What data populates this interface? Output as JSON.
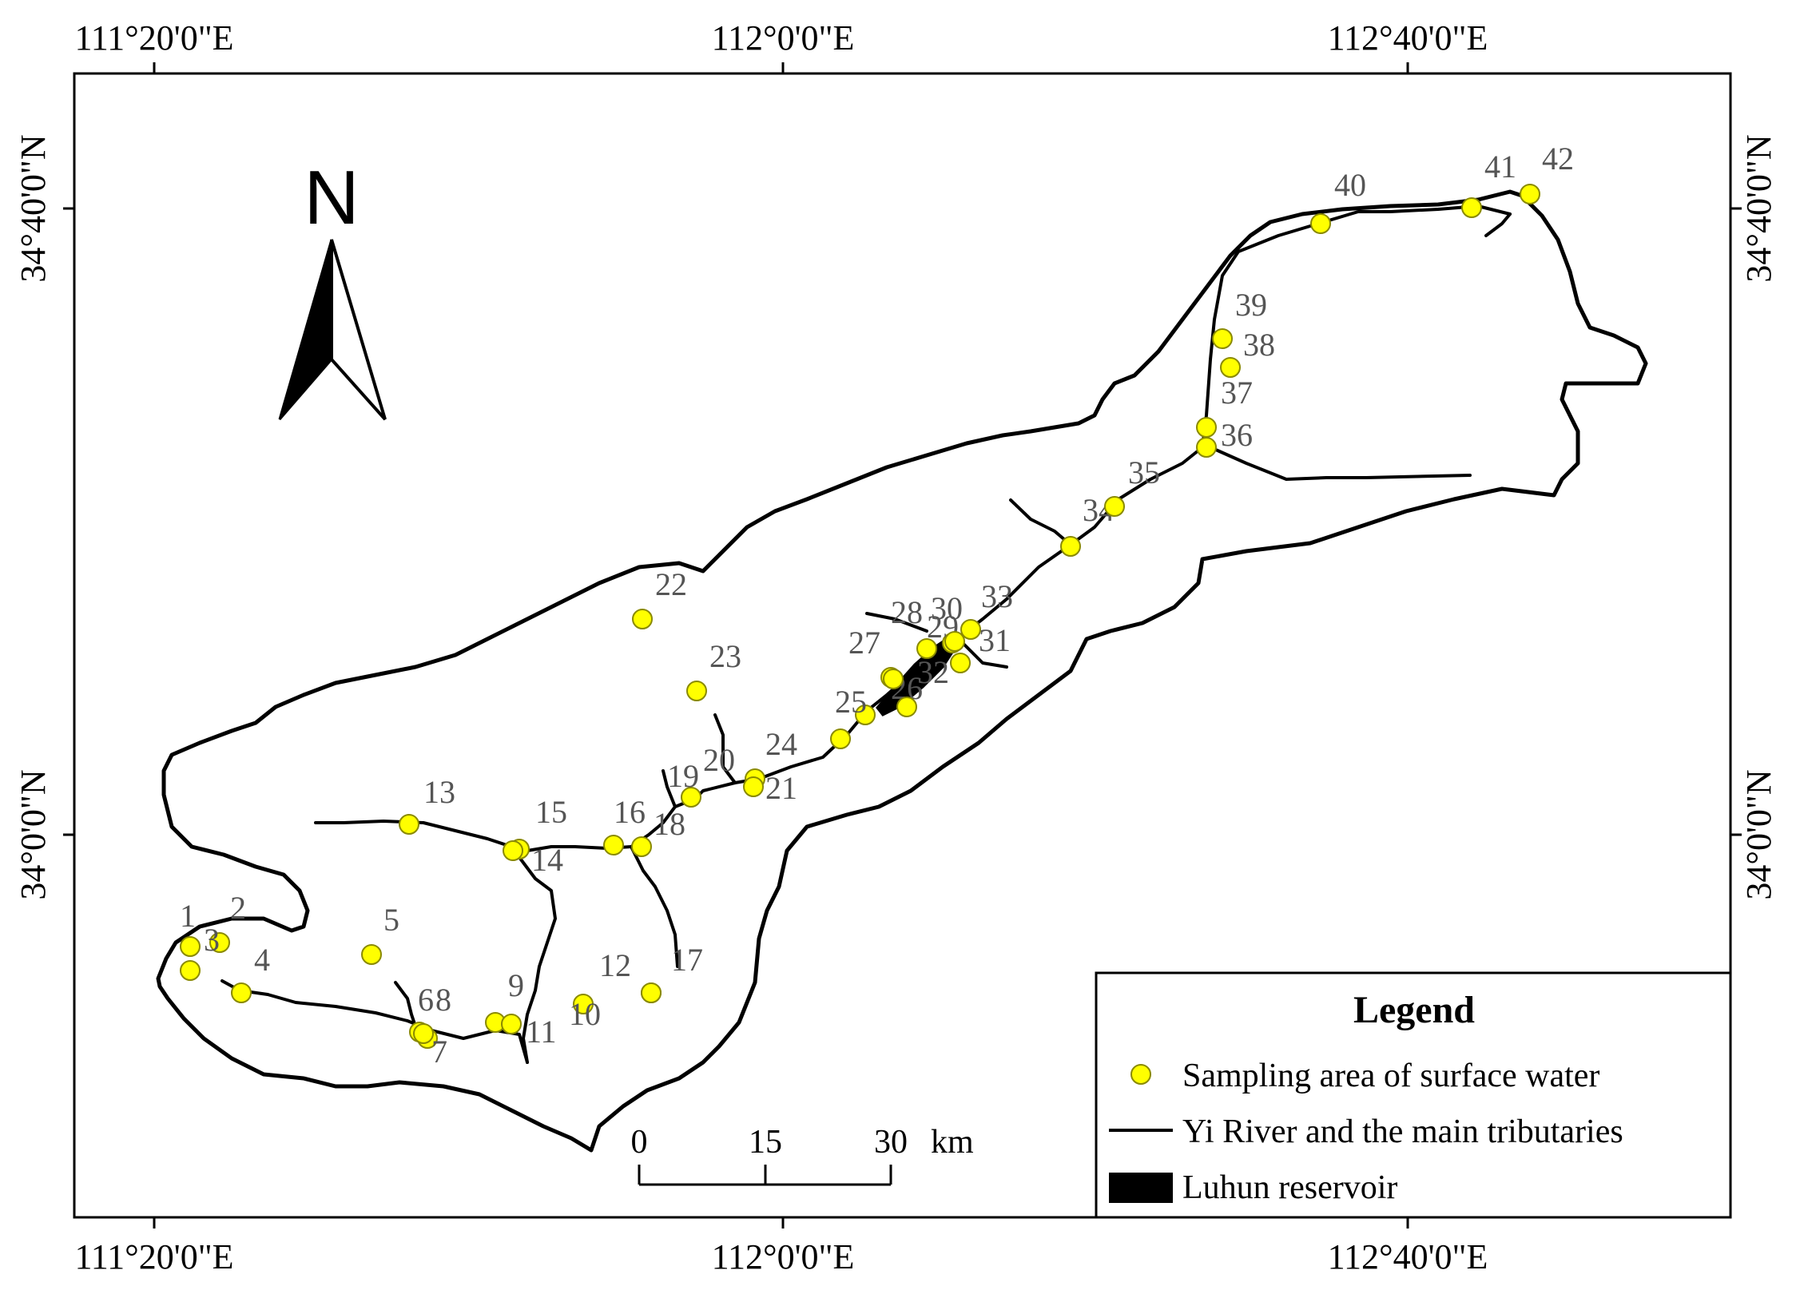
{
  "coords": {
    "top": [
      "111°20'0\"E",
      "112°0'0\"E",
      "112°40'0\"E"
    ],
    "bottom": [
      "111°20'0\"E",
      "112°0'0\"E",
      "112°40'0\"E"
    ],
    "left": [
      "34°40'0\"N",
      "34°0'0\"N"
    ],
    "right": [
      "34°40'0\"N",
      "34°0'0\"N"
    ]
  },
  "north": {
    "label": "N"
  },
  "legend": {
    "title": "Legend",
    "items": [
      {
        "label": "Sampling area of surface water",
        "symbol": "yellow-point"
      },
      {
        "label": "Yi River and the main tributaries",
        "symbol": "black-line"
      },
      {
        "label": "Luhun reservoir",
        "symbol": "black-fill"
      }
    ]
  },
  "scale": {
    "ticks": [
      "0",
      "15",
      "30"
    ],
    "unit": "km"
  },
  "colors": {
    "point_fill": "#ffff00",
    "point_stroke": "#8a8a00",
    "line": "#000000",
    "label": "#555555"
  },
  "sites": [
    {
      "id": "1",
      "label": "1"
    },
    {
      "id": "2",
      "label": "2"
    },
    {
      "id": "3",
      "label": "3"
    },
    {
      "id": "4",
      "label": "4"
    },
    {
      "id": "5",
      "label": "5"
    },
    {
      "id": "6",
      "label": "6"
    },
    {
      "id": "7",
      "label": "7"
    },
    {
      "id": "8",
      "label": "8"
    },
    {
      "id": "9",
      "label": "9"
    },
    {
      "id": "10",
      "label": "10"
    },
    {
      "id": "11",
      "label": "11"
    },
    {
      "id": "12",
      "label": "12"
    },
    {
      "id": "13",
      "label": "13"
    },
    {
      "id": "14",
      "label": "14"
    },
    {
      "id": "15",
      "label": "15"
    },
    {
      "id": "16",
      "label": "16"
    },
    {
      "id": "17",
      "label": "17"
    },
    {
      "id": "18",
      "label": "18"
    },
    {
      "id": "19",
      "label": "19"
    },
    {
      "id": "20",
      "label": "20"
    },
    {
      "id": "21",
      "label": "21"
    },
    {
      "id": "22",
      "label": "22"
    },
    {
      "id": "23",
      "label": "23"
    },
    {
      "id": "24",
      "label": "24"
    },
    {
      "id": "25",
      "label": "25"
    },
    {
      "id": "26",
      "label": "26"
    },
    {
      "id": "27",
      "label": "27"
    },
    {
      "id": "28",
      "label": "28"
    },
    {
      "id": "29",
      "label": "29"
    },
    {
      "id": "30",
      "label": "30"
    },
    {
      "id": "31",
      "label": "31"
    },
    {
      "id": "32",
      "label": "32"
    },
    {
      "id": "33",
      "label": "33"
    },
    {
      "id": "34",
      "label": "34"
    },
    {
      "id": "35",
      "label": "35"
    },
    {
      "id": "36",
      "label": "36"
    },
    {
      "id": "37",
      "label": "37"
    },
    {
      "id": "38",
      "label": "38"
    },
    {
      "id": "39",
      "label": "39"
    },
    {
      "id": "40",
      "label": "40"
    },
    {
      "id": "41",
      "label": "41"
    },
    {
      "id": "42",
      "label": "42"
    }
  ]
}
